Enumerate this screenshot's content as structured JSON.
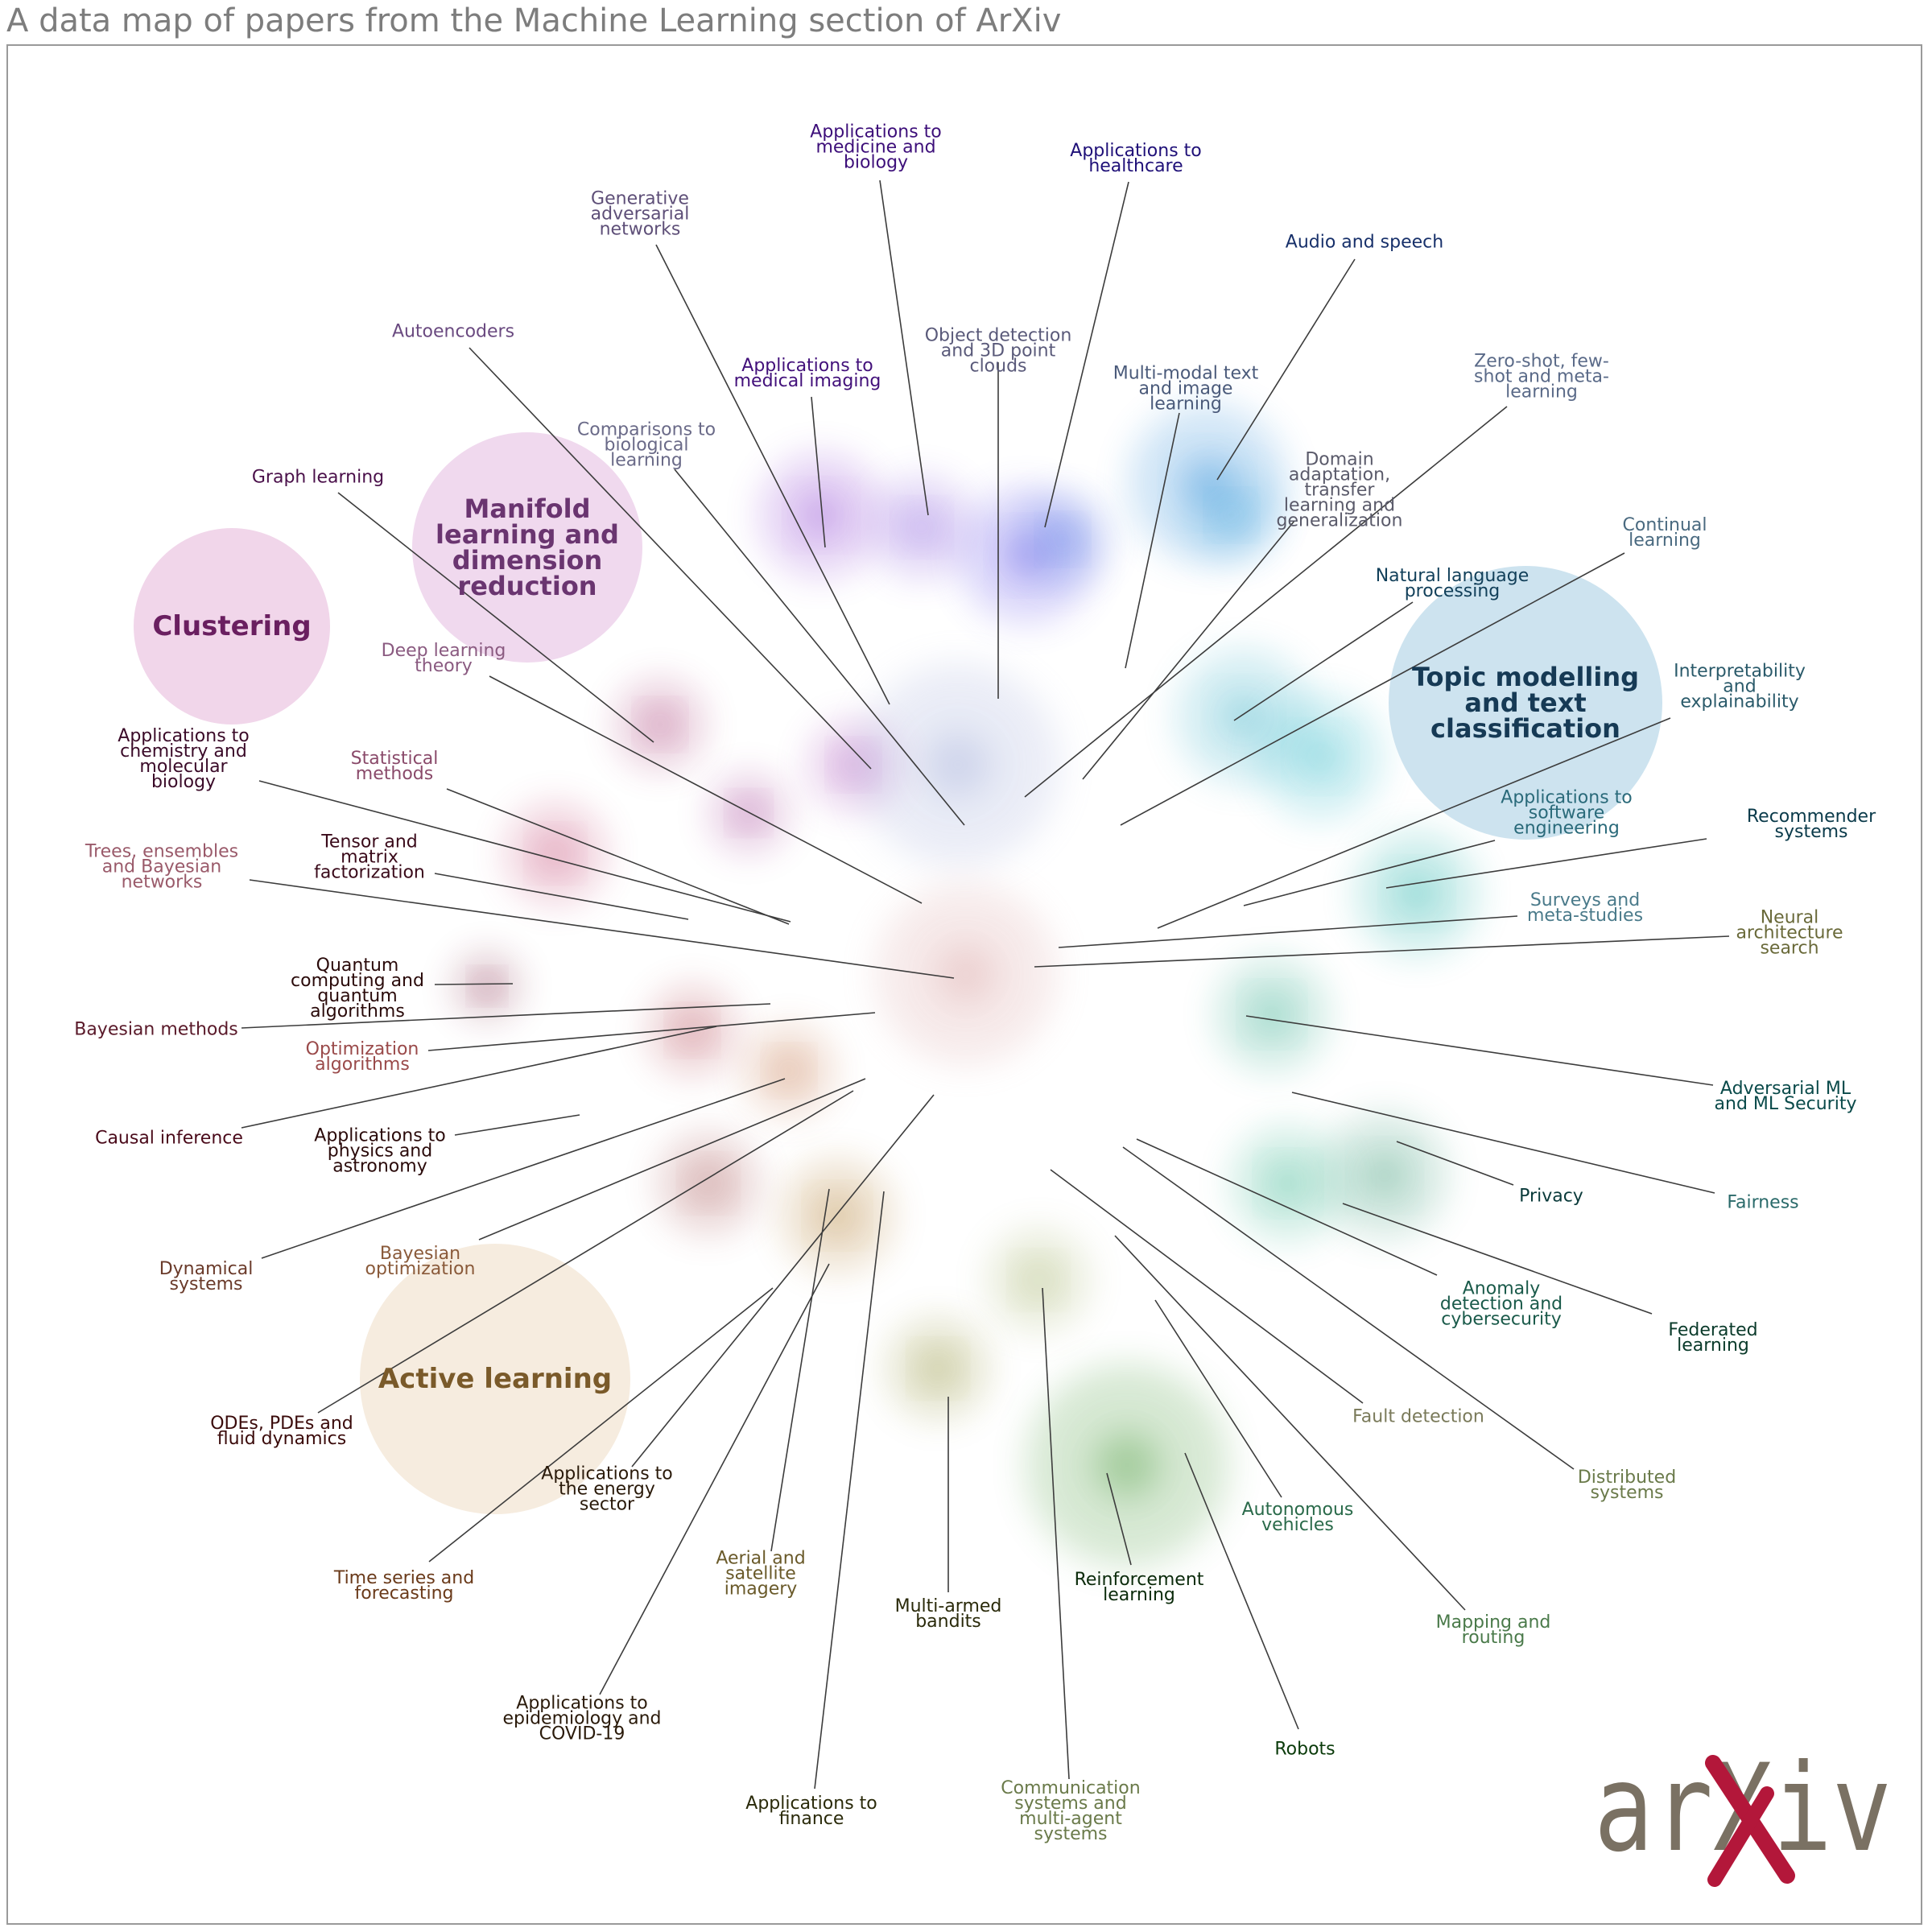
{
  "title": "A data map of papers from the Machine Learning section of ArXiv",
  "logo": {
    "text": "arXiv",
    "icon": "arxiv-logo",
    "colors": {
      "letters": "#7a7163",
      "x_accent": "#b3173a"
    }
  },
  "highlights": [
    {
      "text": "Manifold\nlearning and\ndimension\nreduction",
      "color": "#6a3570",
      "fill": "#f0d9ee"
    },
    {
      "text": "Clustering",
      "color": "#6a1f60",
      "fill": "#f1d6ea"
    },
    {
      "text": "Topic modelling\nand text\nclassification",
      "color": "#163a55",
      "fill": "#cde3ef"
    },
    {
      "text": "Active learning",
      "color": "#7a5a2a",
      "fill": "#f6ecdf"
    }
  ],
  "labels": [
    {
      "text": "Applications to\nmedicine and\nbiology",
      "color": "#3d0f7a"
    },
    {
      "text": "Applications to\nhealthcare",
      "color": "#1f1078"
    },
    {
      "text": "Generative\nadversarial\nnetworks",
      "color": "#5e4f78"
    },
    {
      "text": "Audio and speech",
      "color": "#17306a"
    },
    {
      "text": "Autoencoders",
      "color": "#6a4a80"
    },
    {
      "text": "Object detection\nand 3D point\nclouds",
      "color": "#5a5a7a"
    },
    {
      "text": "Applications to\nmedical imaging",
      "color": "#42107a"
    },
    {
      "text": "Multi-modal text\nand image\nlearning",
      "color": "#4a5a7a"
    },
    {
      "text": "Zero-shot, few-\nshot and meta-\nlearning",
      "color": "#5a6a88"
    },
    {
      "text": "Comparisons to\nbiological\nlearning",
      "color": "#6a6a88"
    },
    {
      "text": "Domain\nadaptation,\ntransfer\nlearning and\ngeneralization",
      "color": "#5a5a6a"
    },
    {
      "text": "Graph learning",
      "color": "#4a104a"
    },
    {
      "text": "Continual\nlearning",
      "color": "#4a6a80"
    },
    {
      "text": "Natural language\nprocessing",
      "color": "#12405a"
    },
    {
      "text": "Deep learning\ntheory",
      "color": "#8a5a80"
    },
    {
      "text": "Interpretability\nand\nexplainability",
      "color": "#2a5a6a"
    },
    {
      "text": "Applications to\nchemistry and\nmolecular\nbiology",
      "color": "#3a0a28"
    },
    {
      "text": "Statistical\nmethods",
      "color": "#8a4a6a"
    },
    {
      "text": "Applications to\nsoftware\nengineering",
      "color": "#2a6a7a"
    },
    {
      "text": "Recommender\nsystems",
      "color": "#0a3a4a"
    },
    {
      "text": "Trees, ensembles\nand Bayesian\nnetworks",
      "color": "#9a5a6a"
    },
    {
      "text": "Tensor and\nmatrix\nfactorization",
      "color": "#3a0a1a"
    },
    {
      "text": "Surveys and\nmeta-studies",
      "color": "#4a7a8a"
    },
    {
      "text": "Neural\narchitecture\nsearch",
      "color": "#6a6a3a"
    },
    {
      "text": "Quantum\ncomputing and\nquantum\nalgorithms",
      "color": "#2a0a0a"
    },
    {
      "text": "Bayesian methods",
      "color": "#5a1a2a"
    },
    {
      "text": "Optimization\nalgorithms",
      "color": "#9a4a4a"
    },
    {
      "text": "Adversarial ML\nand ML Security",
      "color": "#0a4a4a"
    },
    {
      "text": "Causal inference",
      "color": "#4a0a1a"
    },
    {
      "text": "Applications to\nphysics and\nastronomy",
      "color": "#2a0a0a"
    },
    {
      "text": "Privacy",
      "color": "#0a3a3a"
    },
    {
      "text": "Fairness",
      "color": "#2a6a6a"
    },
    {
      "text": "Dynamical\nsystems",
      "color": "#6a3a2a"
    },
    {
      "text": "Bayesian\noptimization",
      "color": "#8a5a3a"
    },
    {
      "text": "Anomaly\ndetection and\ncybersecurity",
      "color": "#1a5a4a"
    },
    {
      "text": "Federated\nlearning",
      "color": "#0a3a2a"
    },
    {
      "text": "ODEs, PDEs and\nfluid dynamics",
      "color": "#3a0a0a"
    },
    {
      "text": "Fault detection",
      "color": "#7a7a5a"
    },
    {
      "text": "Applications to\nthe energy\nsector",
      "color": "#2a1a0a"
    },
    {
      "text": "Distributed\nsystems",
      "color": "#6a7a4a"
    },
    {
      "text": "Autonomous\nvehicles",
      "color": "#2a6a4a"
    },
    {
      "text": "Aerial and\nsatellite\nimagery",
      "color": "#6a5a2a"
    },
    {
      "text": "Time series and\nforecasting",
      "color": "#6a3a1a"
    },
    {
      "text": "Multi-armed\nbandits",
      "color": "#2a2a0a"
    },
    {
      "text": "Reinforcement\nlearning",
      "color": "#0a2a0a"
    },
    {
      "text": "Mapping and\nrouting",
      "color": "#4a7a4a"
    },
    {
      "text": "Applications to\nepidemiology and\nCOVID-19",
      "color": "#2a1a0a"
    },
    {
      "text": "Robots",
      "color": "#0a3a0a"
    },
    {
      "text": "Applications to\nfinance",
      "color": "#2a2a0a"
    },
    {
      "text": "Communication\nsystems and\nmulti-agent\nsystems",
      "color": "#6a7a4a"
    }
  ],
  "clusters": [
    {
      "color": "#8a3ad0"
    },
    {
      "color": "#7a4ad8"
    },
    {
      "color": "#5a4ae8"
    },
    {
      "color": "#3a6ae0"
    },
    {
      "color": "#2a8ad8"
    },
    {
      "color": "#2a9ad8"
    },
    {
      "color": "#3ab0c8"
    },
    {
      "color": "#2ab8c8"
    },
    {
      "color": "#1ab0a8"
    },
    {
      "color": "#2aa888"
    },
    {
      "color": "#3a9a78"
    },
    {
      "color": "#2ab088"
    },
    {
      "color": "#4a9a3a"
    },
    {
      "color": "#9aaa5a"
    },
    {
      "color": "#8a8a2a"
    },
    {
      "color": "#b07a2a"
    },
    {
      "color": "#c06a3a"
    },
    {
      "color": "#a04a4a"
    },
    {
      "color": "#b03a4a"
    },
    {
      "color": "#c03a6a"
    },
    {
      "color": "#a02a6a"
    },
    {
      "color": "#9a2a8a"
    },
    {
      "color": "#a03ab0"
    },
    {
      "color": "#7a1a3a"
    },
    {
      "color": "#a0aad8"
    },
    {
      "color": "#d8a0a0"
    }
  ]
}
